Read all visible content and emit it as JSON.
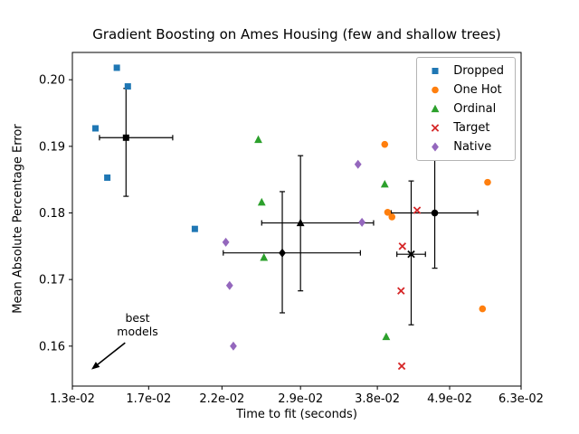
{
  "chart": {
    "title": "Gradient Boosting on Ames Housing (few and shallow trees)",
    "xlabel": "Time to fit (seconds)",
    "ylabel": "Mean Absolute Percentage Error"
  },
  "chart_data": {
    "type": "scatter",
    "title": "Gradient Boosting on Ames Housing (few and shallow trees)",
    "xlabel": "Time to fit (seconds)",
    "ylabel": "Mean Absolute Percentage Error",
    "x_scale": "log",
    "xlim": [
      0.013,
      0.063
    ],
    "ylim": [
      0.154,
      0.2041
    ],
    "grid": false,
    "legend_position": "upper right",
    "xticks": [
      {
        "value": 0.013,
        "label": "1.3e-02"
      },
      {
        "value": 0.017,
        "label": "1.7e-02"
      },
      {
        "value": 0.022,
        "label": "2.2e-02"
      },
      {
        "value": 0.029,
        "label": "2.9e-02"
      },
      {
        "value": 0.038,
        "label": "3.8e-02"
      },
      {
        "value": 0.049,
        "label": "4.9e-02"
      },
      {
        "value": 0.063,
        "label": "6.3e-02"
      }
    ],
    "yticks": [
      {
        "value": 0.16,
        "label": "0.16"
      },
      {
        "value": 0.17,
        "label": "0.17"
      },
      {
        "value": 0.18,
        "label": "0.18"
      },
      {
        "value": 0.19,
        "label": "0.19"
      },
      {
        "value": 0.2,
        "label": "0.20"
      }
    ],
    "series": [
      {
        "name": "Dropped",
        "marker": "square",
        "color": "#1f77b4",
        "points": [
          [
            0.0141,
            0.1927
          ],
          [
            0.0152,
            0.2018
          ],
          [
            0.0147,
            0.1853
          ],
          [
            0.0158,
            0.199
          ],
          [
            0.02,
            0.1776
          ]
        ],
        "mean": {
          "x": 0.0157,
          "y": 0.1913,
          "xerr": [
            0.0143,
            0.0185
          ],
          "yerr": [
            0.1825,
            0.1987
          ]
        }
      },
      {
        "name": "One Hot",
        "marker": "circle",
        "color": "#ff7f0e",
        "points": [
          [
            0.039,
            0.1903
          ],
          [
            0.056,
            0.1846
          ],
          [
            0.0394,
            0.1801
          ],
          [
            0.04,
            0.1794
          ],
          [
            0.055,
            0.1656
          ]
        ],
        "mean": {
          "x": 0.0465,
          "y": 0.18,
          "xerr": [
            0.0399,
            0.0541
          ],
          "yerr": [
            0.1717,
            0.1883
          ]
        }
      },
      {
        "name": "Ordinal",
        "marker": "triangle",
        "color": "#2ca02c",
        "points": [
          [
            0.025,
            0.191
          ],
          [
            0.0253,
            0.1816
          ],
          [
            0.0255,
            0.1733
          ],
          [
            0.039,
            0.1843
          ],
          [
            0.0392,
            0.1614
          ]
        ],
        "mean": {
          "x": 0.029,
          "y": 0.1785,
          "xerr": [
            0.0253,
            0.0375
          ],
          "yerr": [
            0.1683,
            0.1886
          ]
        }
      },
      {
        "name": "Target",
        "marker": "x",
        "color": "#d62728",
        "points": [
          [
            0.0415,
            0.175
          ],
          [
            0.0413,
            0.1683
          ],
          [
            0.0437,
            0.1804
          ],
          [
            0.0448,
            0.1888
          ],
          [
            0.0414,
            0.157
          ]
        ],
        "mean": {
          "x": 0.0428,
          "y": 0.1738,
          "xerr": [
            0.0407,
            0.045
          ],
          "yerr": [
            0.1632,
            0.1848
          ]
        }
      },
      {
        "name": "Native",
        "marker": "diamond",
        "color": "#9467bd",
        "points": [
          [
            0.0223,
            0.1756
          ],
          [
            0.0226,
            0.1691
          ],
          [
            0.0229,
            0.16
          ],
          [
            0.0355,
            0.1873
          ],
          [
            0.036,
            0.1786
          ]
        ],
        "mean": {
          "x": 0.0272,
          "y": 0.174,
          "xerr": [
            0.0221,
            0.0358
          ],
          "yerr": [
            0.165,
            0.1832
          ]
        }
      }
    ],
    "annotation": {
      "text": "best\nmodels",
      "arrow_from": [
        0.01565,
        0.1605
      ],
      "arrow_to": [
        0.0139,
        0.1565
      ]
    }
  }
}
